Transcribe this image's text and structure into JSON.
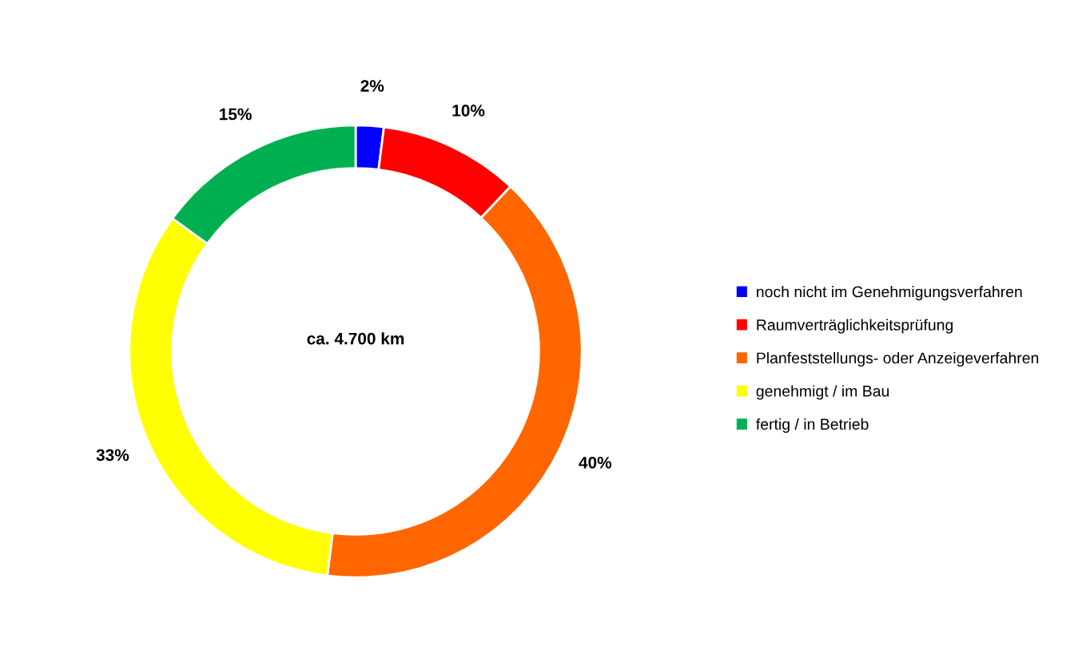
{
  "chart_data": {
    "type": "donut",
    "categories": [
      "noch nicht im Genehmigungsverfahren",
      "Raumverträglichkeitsprüfung",
      "Planfeststellungs- oder Anzeigeverfahren",
      "genehmigt / im Bau",
      "fertig / in Betrieb"
    ],
    "values": [
      2,
      10,
      40,
      33,
      15
    ],
    "colors": [
      "#0000ff",
      "#ff0000",
      "#ff6600",
      "#ffff00",
      "#00b050"
    ],
    "value_labels": [
      "2%",
      "10%",
      "40%",
      "33%",
      "15%"
    ],
    "annotations": [
      "ca. 4.700 km"
    ],
    "legend": "right"
  }
}
